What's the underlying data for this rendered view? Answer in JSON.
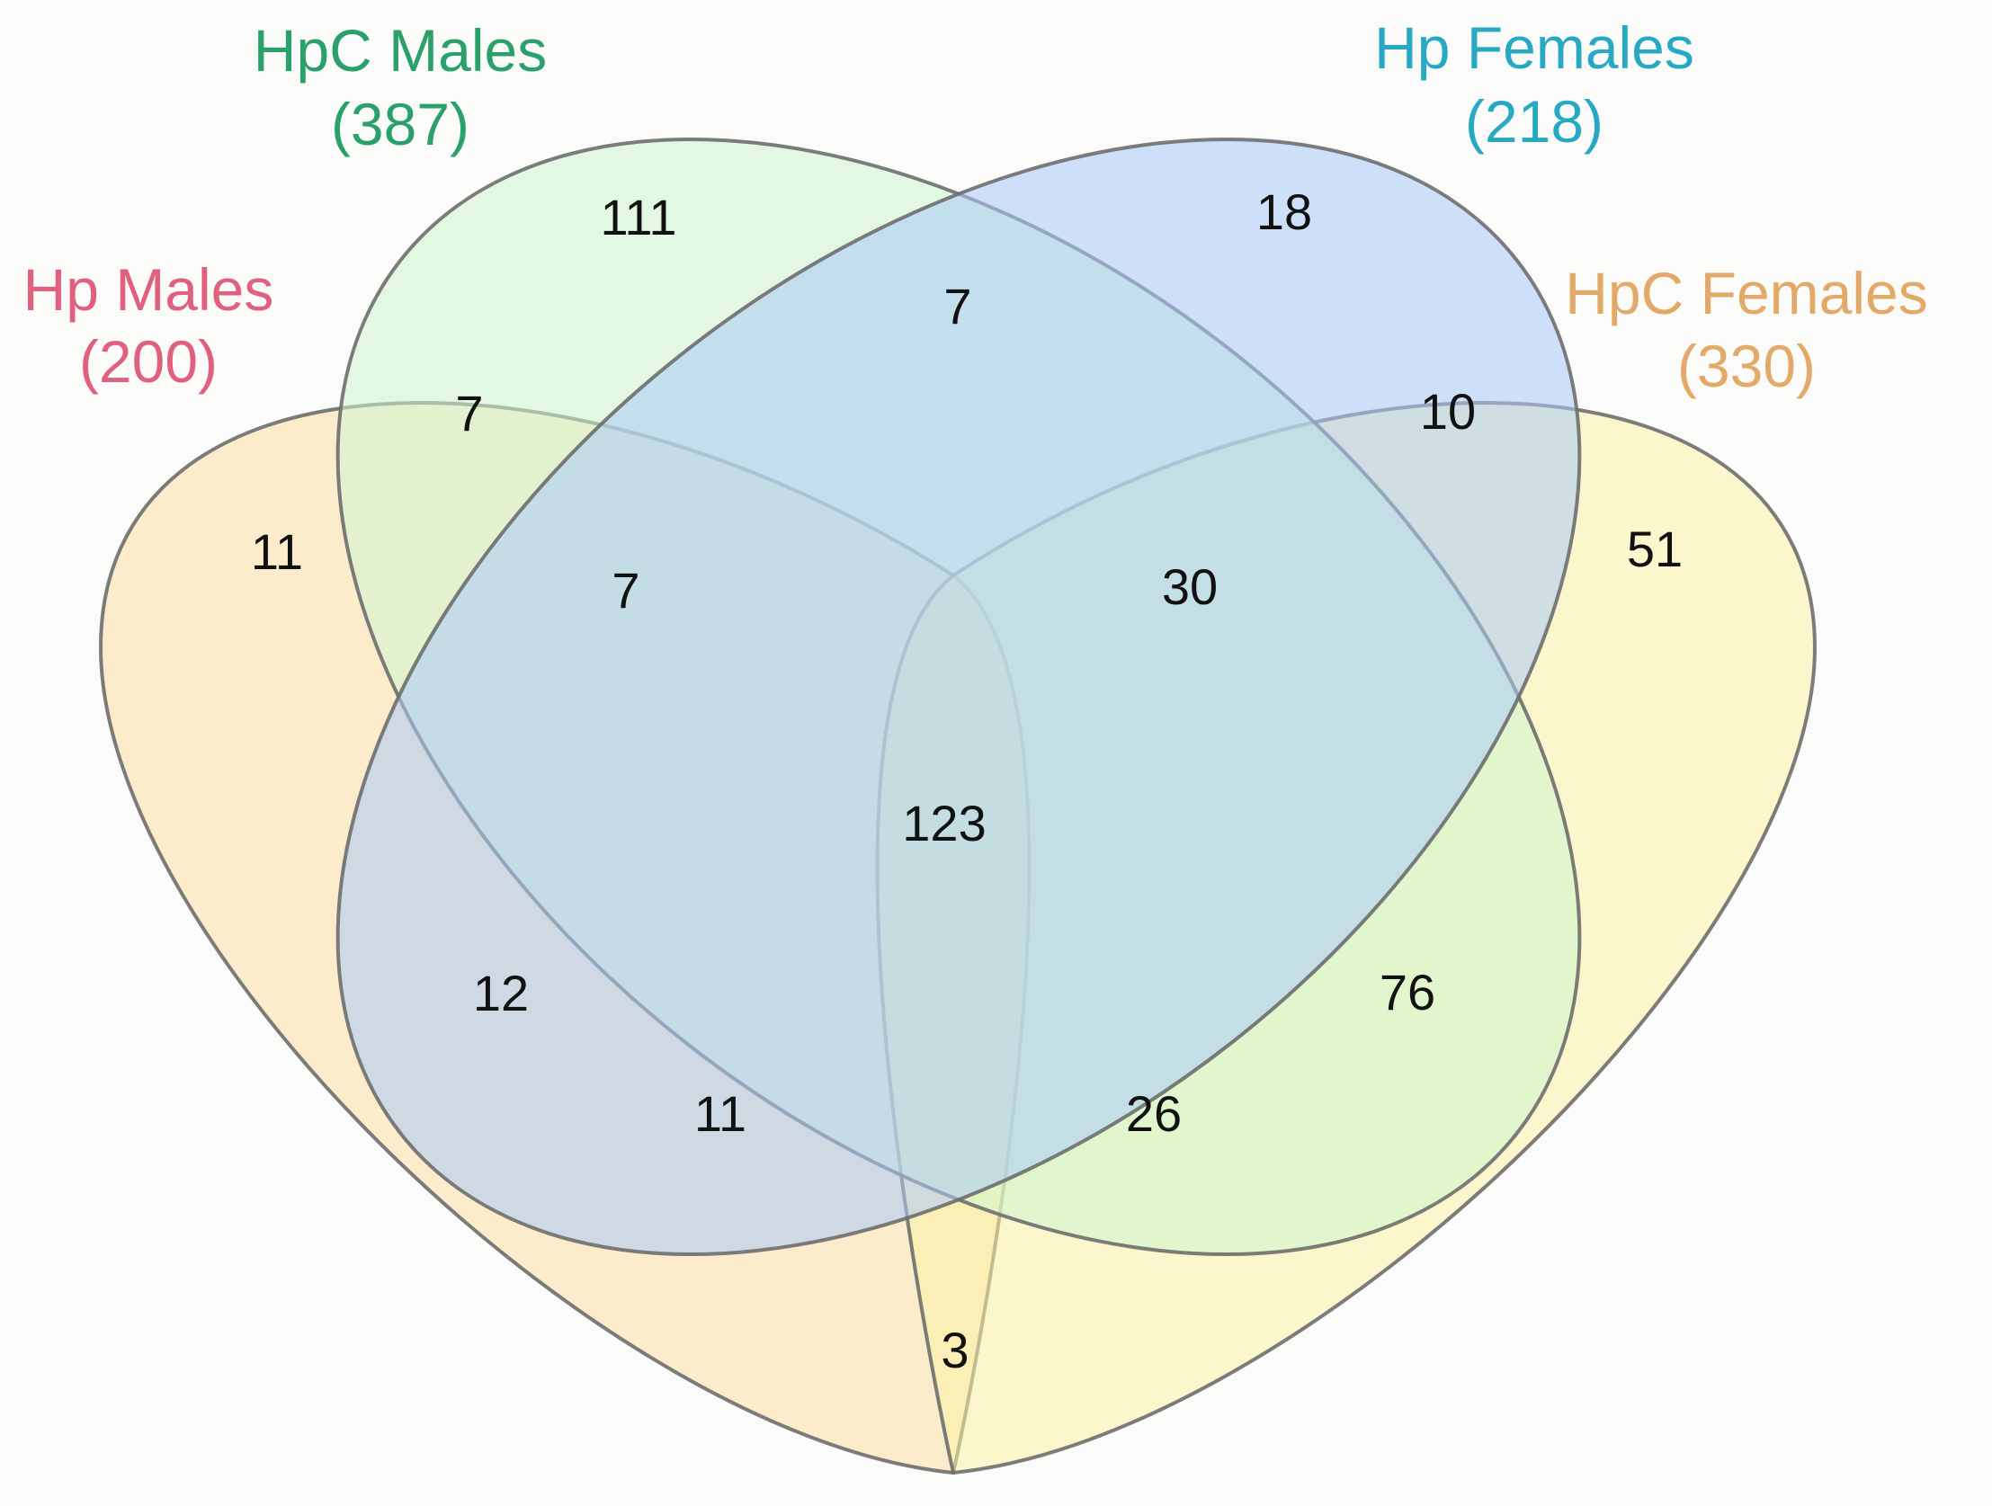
{
  "colors": {
    "background": "#fbfbfa",
    "outline": "#6e6e6e"
  },
  "sets": {
    "hp_males": {
      "name": "Hp Males",
      "total": "(200)",
      "label_color": "#e0607e",
      "fill": "#fde0a6"
    },
    "hpc_males": {
      "name": "HpC Males",
      "total": "(387)",
      "label_color": "#2aa06a",
      "fill": "#cdf5cf"
    },
    "hp_females": {
      "name": "Hp Females",
      "total": "(218)",
      "label_color": "#27a9c3",
      "fill": "#a9cbf7"
    },
    "hpc_females": {
      "name": "HpC Females",
      "total": "(330)",
      "label_color": "#e3a968",
      "fill": "#fbf3a4"
    }
  },
  "regions": {
    "hp_males_only": "11",
    "hpc_males_only": "111",
    "hp_females_only": "18",
    "hpc_females_only": "51",
    "hpc_males_hp_females": "7",
    "hp_males_hpc_males": "7",
    "hp_females_hpc_females": "10",
    "hp_males_hpc_males_hp_females": "7",
    "hpc_males_hp_females_hpc_females": "30",
    "all_four": "123",
    "hp_males_hp_females": "12",
    "hpc_males_hpc_females": "76",
    "hp_males_hp_females_hpc_females": "11",
    "hp_males_hpc_males_hpc_females": "26",
    "hp_males_hpc_females": "3"
  }
}
